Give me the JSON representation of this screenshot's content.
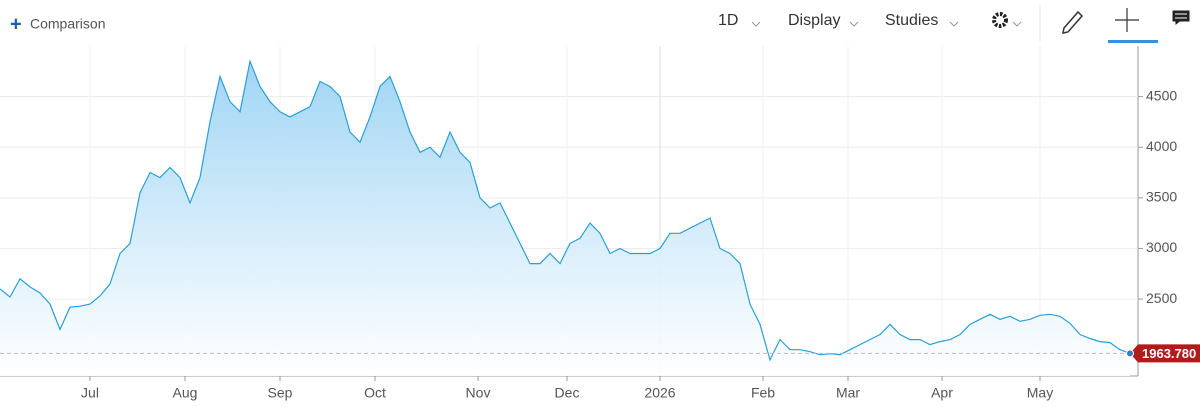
{
  "toolbar": {
    "comparison": "Comparison",
    "interval": "1D",
    "display": "Display",
    "studies": "Studies"
  },
  "chart_data": {
    "type": "area",
    "values": [
      2600,
      2520,
      2700,
      2620,
      2560,
      2450,
      2200,
      2420,
      2430,
      2450,
      2530,
      2650,
      2950,
      3050,
      3550,
      3750,
      3700,
      3800,
      3700,
      3450,
      3700,
      4250,
      4700,
      4450,
      4350,
      4850,
      4600,
      4450,
      4350,
      4300,
      4350,
      4400,
      4650,
      4600,
      4500,
      4150,
      4050,
      4300,
      4600,
      4700,
      4450,
      4150,
      3950,
      4000,
      3900,
      4150,
      3950,
      3850,
      3500,
      3400,
      3450,
      3250,
      3050,
      2850,
      2850,
      2950,
      2850,
      3050,
      3100,
      3250,
      3150,
      2950,
      3000,
      2950,
      2950,
      2950,
      3000,
      3150,
      3150,
      3200,
      3250,
      3300,
      3000,
      2950,
      2850,
      2450,
      2250,
      1900,
      2100,
      2000,
      2000,
      1980,
      1950,
      1960,
      1950,
      2000,
      2050,
      2100,
      2150,
      2250,
      2150,
      2100,
      2100,
      2050,
      2080,
      2100,
      2150,
      2250,
      2300,
      2350,
      2300,
      2330,
      2280,
      2300,
      2340,
      2350,
      2330,
      2260,
      2150,
      2110,
      2080,
      2070,
      2000,
      1963.78
    ],
    "last_label": "1963.780",
    "color": "#2a9fd6",
    "xlim": [
      0,
      113.5
    ],
    "xticks": [
      {
        "value": 9,
        "label": "Jul"
      },
      {
        "value": 18.5,
        "label": "Aug"
      },
      {
        "value": 28,
        "label": "Sep"
      },
      {
        "value": 37.5,
        "label": "Oct"
      },
      {
        "value": 47.8,
        "label": "Nov"
      },
      {
        "value": 56.7,
        "label": "Dec"
      },
      {
        "value": 66,
        "label": "2026"
      },
      {
        "value": 76.3,
        "label": "Feb"
      },
      {
        "value": 84.8,
        "label": "Mar"
      },
      {
        "value": 94.2,
        "label": "Apr"
      },
      {
        "value": 104,
        "label": "May"
      }
    ],
    "ylim": [
      1740,
      5000
    ],
    "yticks": [
      2500,
      3000,
      3500,
      4000,
      4500
    ],
    "grid": true
  }
}
